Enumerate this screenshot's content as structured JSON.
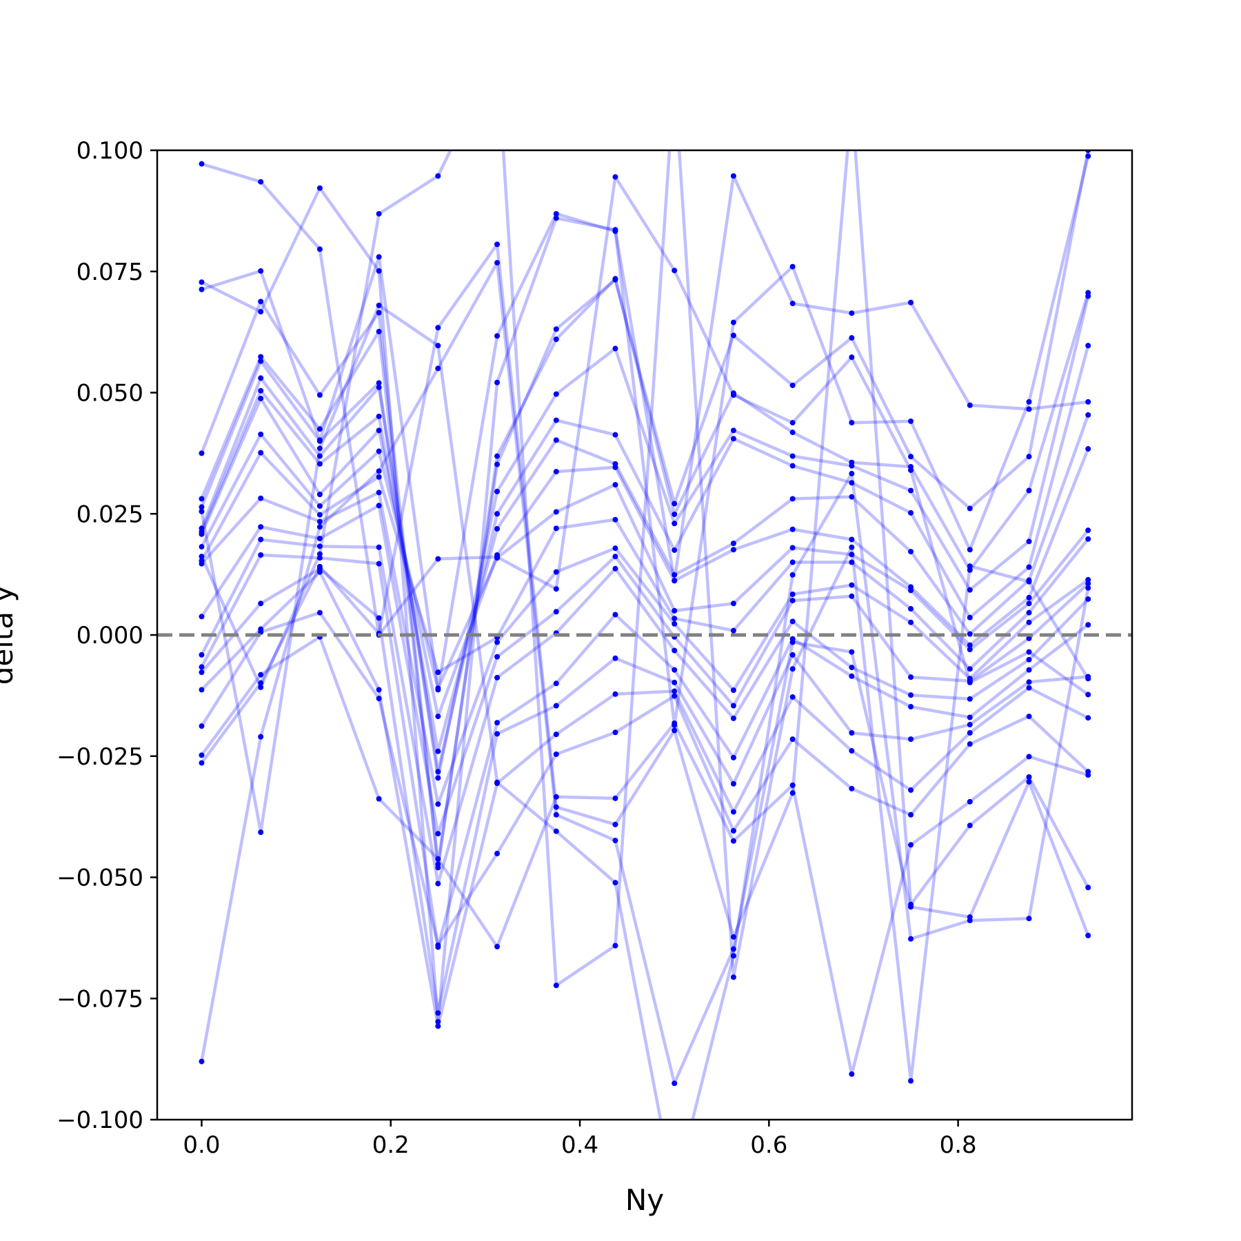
{
  "chart_data": {
    "type": "line",
    "xlabel": "Ny",
    "ylabel": "delta y",
    "xlim": [
      -0.047,
      0.984
    ],
    "ylim": [
      -0.1,
      0.1
    ],
    "x_ticks": [
      {
        "value": 0.0,
        "label": "0.0"
      },
      {
        "value": 0.2,
        "label": "0.2"
      },
      {
        "value": 0.4,
        "label": "0.4"
      },
      {
        "value": 0.6,
        "label": "0.6"
      },
      {
        "value": 0.8,
        "label": "0.8"
      }
    ],
    "y_ticks": [
      {
        "value": 0.1,
        "label": "0.100"
      },
      {
        "value": 0.075,
        "label": "0.075"
      },
      {
        "value": 0.05,
        "label": "0.050"
      },
      {
        "value": 0.025,
        "label": "0.025"
      },
      {
        "value": 0.0,
        "label": "0.000"
      },
      {
        "value": -0.025,
        "label": "−0.025"
      },
      {
        "value": -0.05,
        "label": "−0.050"
      },
      {
        "value": -0.075,
        "label": "−0.075"
      },
      {
        "value": -0.1,
        "label": "−0.100"
      }
    ],
    "grid": false,
    "reference_line": {
      "y": 0.0,
      "style": "dashed",
      "color": "#808080"
    },
    "series_color": "#0000ff",
    "line_opacity": 0.25,
    "x": [
      0.0,
      0.0625,
      0.125,
      0.1875,
      0.25,
      0.3125,
      0.375,
      0.4375,
      0.5,
      0.5625,
      0.625,
      0.6875,
      0.75,
      0.8125,
      0.875,
      0.9375
    ],
    "series": [
      {
        "values": [
          0.0972,
          0.0935,
          0.0796,
          0.0,
          0.0157,
          0.0161,
          0.0095,
          0.0945,
          0.0752,
          0.0495,
          0.0438,
          0.0573,
          0.034,
          -0.0098,
          -0.0035,
          -0.0123
        ]
      },
      {
        "values": [
          0.0728,
          0.0667,
          0.0922,
          0.0751,
          -0.0798,
          0.0521,
          0.086,
          0.0836,
          0.0112,
          0.0947,
          0.0684,
          0.0664,
          0.0686,
          0.0474,
          0.0466,
          0.0481
        ]
      },
      {
        "values": [
          0.0713,
          0.0751,
          0.0402,
          0.078,
          -0.0113,
          0.0617,
          0.0869,
          0.0833,
          -0.0186,
          0.0645,
          0.076,
          0.0438,
          0.0441,
          0.0176,
          0.0481,
          0.0988
        ]
      },
      {
        "values": [
          0.0375,
          0.0688,
          0.0495,
          0.0665,
          -0.0473,
          0.0352,
          0.0631,
          0.0733,
          0.0271,
          0.0618,
          0.0515,
          0.0613,
          0.0368,
          0.0261,
          0.0368,
          0.1
        ]
      },
      {
        "values": [
          0.0281,
          0.0574,
          0.0425,
          0.0626,
          -0.048,
          0.0369,
          0.061,
          0.0735,
          0.0249,
          0.0499,
          0.0418,
          0.0356,
          0.0347,
          0.0134,
          0.0298,
          0.0706
        ]
      },
      {
        "values": [
          0.0264,
          0.0565,
          0.04,
          0.052,
          -0.0295,
          0.0296,
          0.0497,
          0.0591,
          0.023,
          0.0422,
          0.0369,
          0.0349,
          0.0298,
          0.0093,
          0.0193,
          0.0699
        ]
      },
      {
        "values": [
          0.022,
          0.053,
          0.0369,
          0.0511,
          -0.0282,
          0.025,
          0.0443,
          0.0413,
          0.0175,
          0.0405,
          0.0349,
          0.0314,
          0.0252,
          0.0036,
          0.014,
          0.0597
        ]
      },
      {
        "values": [
          0.0213,
          0.0504,
          0.0353,
          0.0451,
          -0.024,
          0.0219,
          0.0402,
          0.0353,
          0.0124,
          0.0189,
          0.0281,
          0.0285,
          0.0172,
          0.0002,
          0.0113,
          0.0454
        ]
      },
      {
        "values": [
          0.0208,
          0.0488,
          0.029,
          0.0422,
          -0.0168,
          0.0165,
          0.0337,
          0.0346,
          0.0112,
          0.0176,
          0.0218,
          0.0197,
          0.0099,
          -0.0021,
          0.0077,
          0.0384
        ]
      },
      {
        "values": [
          0.0182,
          0.0414,
          0.0266,
          0.0379,
          -0.011,
          0.0159,
          0.0254,
          0.031,
          0.005,
          0.0065,
          0.018,
          0.0166,
          0.0092,
          -0.003,
          0.0065,
          0.0216
        ]
      },
      {
        "values": [
          0.0153,
          0.0376,
          0.0248,
          0.0326,
          -0.0077,
          -0.0005,
          0.022,
          0.0238,
          0.0034,
          0.0009,
          0.015,
          0.015,
          0.0054,
          -0.007,
          0.0046,
          0.0198
        ]
      },
      {
        "values": [
          0.0147,
          0.0282,
          0.0234,
          0.0294,
          -0.0349,
          -0.0015,
          0.013,
          0.0179,
          0.0023,
          -0.0114,
          0.0084,
          0.0103,
          0.0026,
          -0.009,
          0.0026,
          0.0114
        ]
      },
      {
        "values": [
          0.0038,
          0.0223,
          0.0199,
          0.0267,
          -0.041,
          -0.0045,
          0.0048,
          0.0162,
          -0.0004,
          -0.0146,
          0.0071,
          0.008,
          -0.0087,
          -0.0095,
          -0.0007,
          0.0106
        ]
      },
      {
        "values": [
          -0.0041,
          0.0197,
          0.0183,
          0.0181,
          -0.0513,
          -0.0088,
          0.0004,
          0.0137,
          -0.0032,
          -0.0172,
          0.0028,
          -0.0067,
          -0.0124,
          -0.0132,
          -0.0051,
          0.0074
        ]
      },
      {
        "values": [
          -0.0066,
          0.0165,
          0.0159,
          0.0147,
          -0.0644,
          -0.0181,
          -0.01,
          0.0042,
          -0.0072,
          -0.0253,
          -0.0008,
          -0.0085,
          -0.0148,
          -0.017,
          -0.0072,
          0.0021
        ]
      },
      {
        "values": [
          -0.0077,
          0.0065,
          0.0137,
          0.0035,
          -0.078,
          -0.0204,
          -0.0146,
          -0.0048,
          -0.0098,
          -0.0307,
          -0.0041,
          -0.0202,
          -0.0215,
          -0.0185,
          -0.0097,
          -0.0086
        ]
      },
      {
        "values": [
          -0.0113,
          0.0012,
          0.013,
          -0.0113,
          -0.0807,
          -0.0306,
          -0.0205,
          -0.0122,
          -0.0116,
          -0.0365,
          -0.0128,
          -0.0239,
          -0.032,
          -0.0202,
          -0.0109,
          -0.0171
        ]
      },
      {
        "values": [
          -0.0188,
          0.0006,
          0.0046,
          -0.0131,
          -0.064,
          -0.0451,
          -0.0246,
          -0.0201,
          -0.0126,
          -0.0404,
          -0.0215,
          -0.0317,
          -0.0371,
          -0.0225,
          -0.0168,
          -0.0282
        ]
      },
      {
        "values": [
          -0.0248,
          -0.0082,
          -0.0004,
          -0.0338,
          -0.0462,
          -0.0643,
          -0.0334,
          -0.0337,
          -0.0182,
          -0.0425,
          -0.031,
          -0.0906,
          -0.0433,
          -0.0344,
          -0.0251,
          -0.0289
        ]
      },
      {
        "values": [
          -0.0264,
          -0.0099,
          0.0141,
          0.0003,
          0.0634,
          0.0806,
          -0.0355,
          -0.0391,
          -0.0197,
          -0.0623,
          -0.0326,
          0.11,
          -0.0556,
          -0.0393,
          -0.0293,
          -0.0521
        ]
      },
      {
        "values": [
          -0.088,
          -0.021,
          0.0223,
          0.0338,
          0.055,
          0.0768,
          -0.0371,
          -0.0424,
          -0.0925,
          -0.0648,
          -0.0015,
          -0.0035,
          -0.0561,
          -0.0582,
          -0.0303,
          -0.062
        ]
      },
      {
        "values": [
          0.0255,
          -0.0407,
          0.0385,
          0.068,
          0.0597,
          -0.0304,
          -0.0405,
          -0.0511,
          -0.115,
          -0.0662,
          0.0124,
          0.0333,
          -0.0627,
          -0.0589,
          -0.0585,
          0.0097
        ]
      },
      {
        "values": [
          0.0162,
          -0.0108,
          0.0167,
          0.0869,
          0.0947,
          0.12,
          -0.0723,
          -0.0641,
          0.115,
          -0.0706,
          -0.007,
          0.0181,
          -0.092,
          0.0142,
          0.011,
          -0.009
        ]
      }
    ]
  }
}
